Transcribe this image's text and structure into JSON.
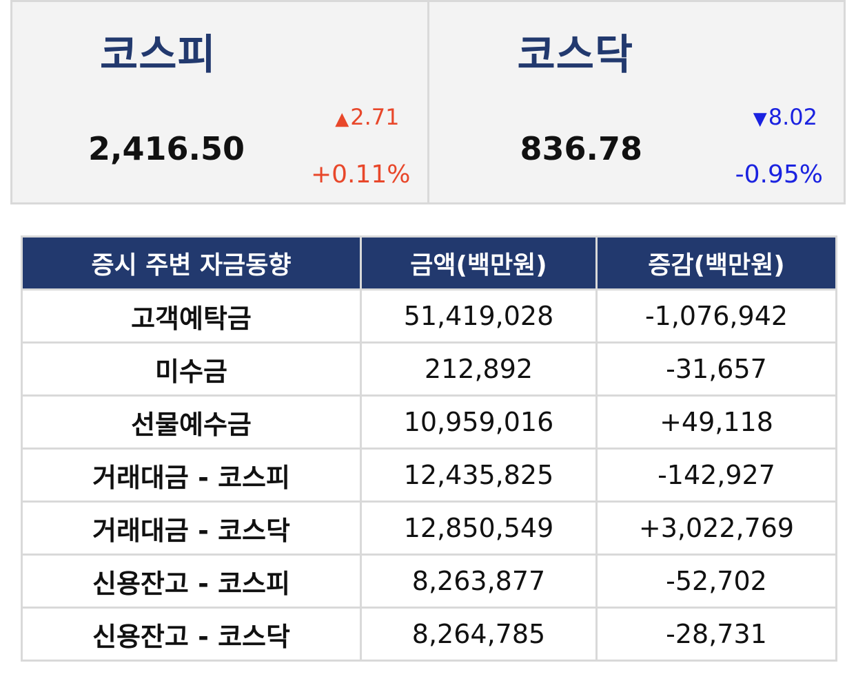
{
  "indices": {
    "kospi": {
      "name": "코스피",
      "value": "2,416.50",
      "change_arrow": "▲",
      "change": "2.71",
      "pct": "+0.11%",
      "direction": "up"
    },
    "kosdaq": {
      "name": "코스닥",
      "value": "836.78",
      "change_arrow": "▼",
      "change": "8.02",
      "pct": "-0.95%",
      "direction": "down"
    }
  },
  "colors": {
    "header_bg": "#22396e",
    "up": "#e8472a",
    "down": "#1a22e0",
    "panel_bg": "#f3f3f3",
    "border": "#d9d9d9"
  },
  "table": {
    "headers": [
      "증시 주변 자금동향",
      "금액(백만원)",
      "증감(백만원)"
    ],
    "rows": [
      {
        "label": "고객예탁금",
        "amount": "51,419,028",
        "change": "-1,076,942",
        "direction": "down"
      },
      {
        "label": "미수금",
        "amount": "212,892",
        "change": "-31,657",
        "direction": "down"
      },
      {
        "label": "선물예수금",
        "amount": "10,959,016",
        "change": "+49,118",
        "direction": "up"
      },
      {
        "label": "거래대금 - 코스피",
        "amount": "12,435,825",
        "change": "-142,927",
        "direction": "down"
      },
      {
        "label": "거래대금 - 코스닥",
        "amount": "12,850,549",
        "change": "+3,022,769",
        "direction": "up"
      },
      {
        "label": "신용잔고 - 코스피",
        "amount": "8,263,877",
        "change": "-52,702",
        "direction": "down"
      },
      {
        "label": "신용잔고 - 코스닥",
        "amount": "8,264,785",
        "change": "-28,731",
        "direction": "down"
      }
    ]
  }
}
